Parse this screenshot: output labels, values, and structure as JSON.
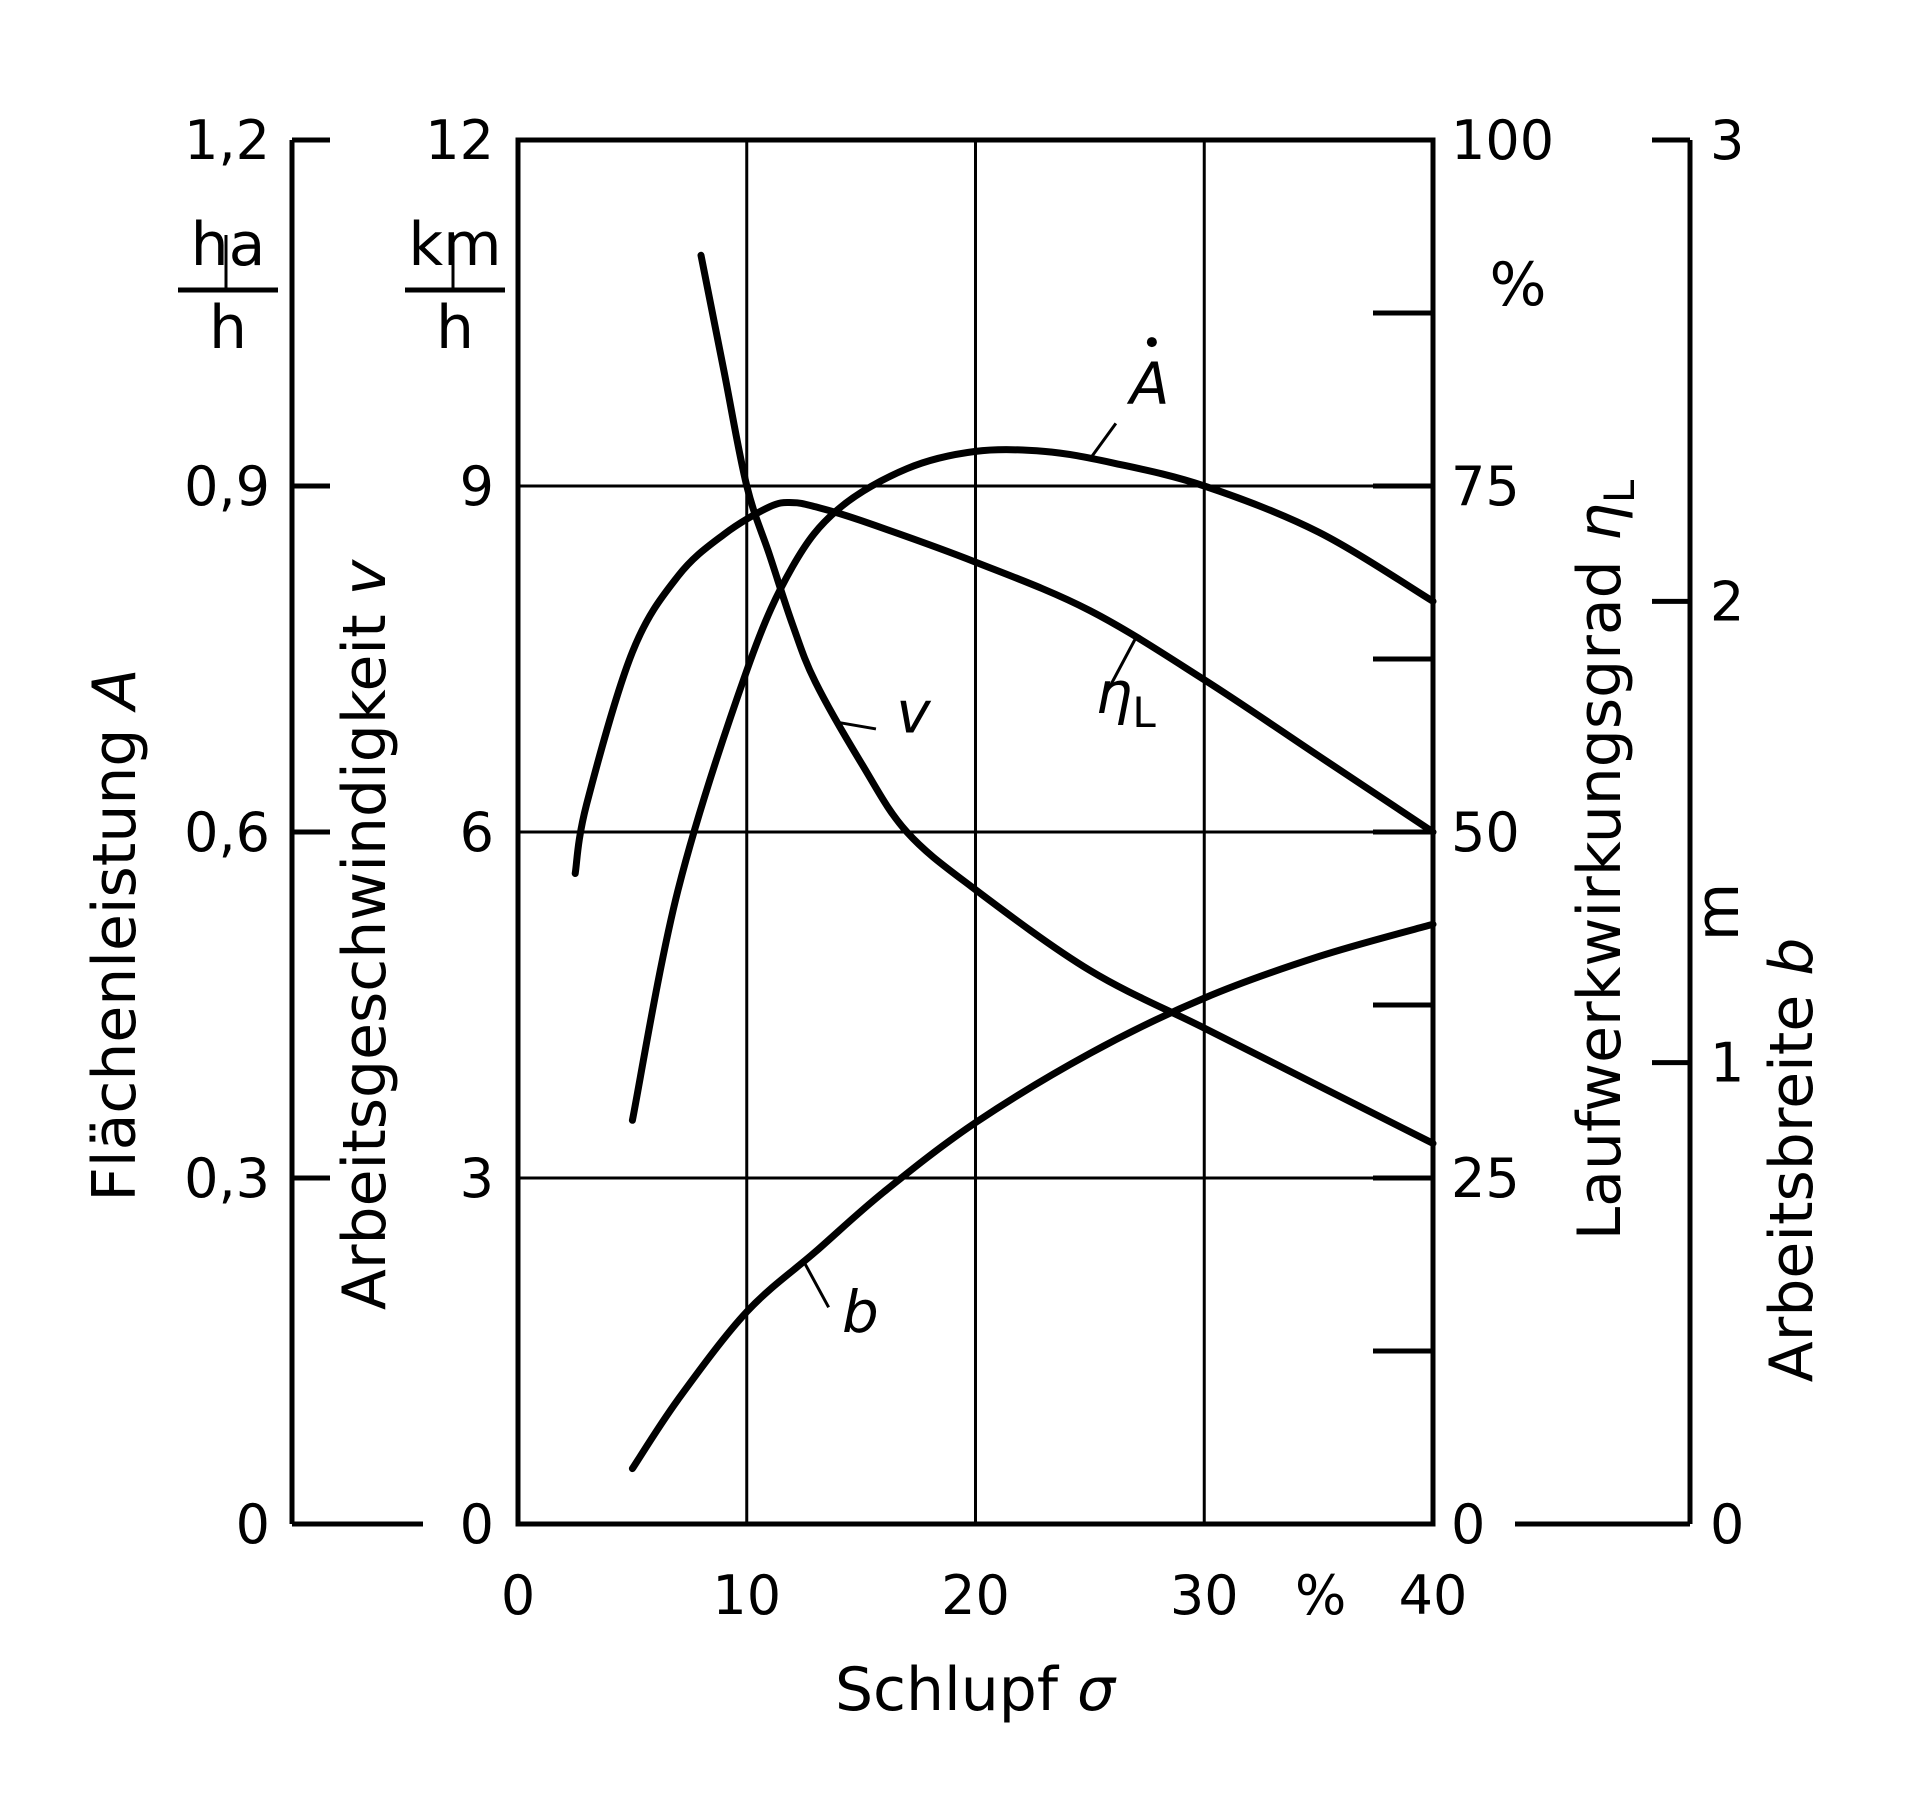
{
  "chart_data": {
    "type": "line",
    "xlabel": "Schlupf",
    "xlabel_symbol": "σ",
    "x_unit": "%",
    "xlim": [
      0,
      40
    ],
    "x_ticks": [
      "0",
      "10",
      "20",
      "30",
      "40"
    ],
    "grid": true,
    "axes": {
      "A": {
        "label": "Flächenleistung",
        "symbol": "A",
        "unit_num": "ha",
        "unit_den": "h",
        "range": [
          0,
          1.2
        ],
        "ticks": [
          "0",
          "0,3",
          "0,6",
          "0,9",
          "1,2"
        ]
      },
      "v": {
        "label": "Arbeitsgeschwindigkeit",
        "symbol": "v",
        "unit_num": "km",
        "unit_den": "h",
        "range": [
          0,
          12
        ],
        "ticks": [
          "0",
          "3",
          "6",
          "9",
          "12"
        ]
      },
      "eta": {
        "label": "Laufwerkwirkungsgrad",
        "symbol": "η",
        "symbol_sub": "L",
        "unit": "%",
        "range": [
          0,
          100
        ],
        "ticks": [
          "0",
          "25",
          "50",
          "75",
          "100"
        ]
      },
      "b": {
        "label": "Arbeitsbreite",
        "symbol": "b",
        "unit": "m",
        "range": [
          0,
          3
        ],
        "ticks": [
          "0",
          "1",
          "2",
          "3"
        ]
      }
    },
    "series": [
      {
        "name": "A",
        "axis": "A",
        "x": [
          5,
          7,
          10,
          12,
          14,
          17,
          20,
          23,
          26,
          30,
          35,
          40
        ],
        "y": [
          0.35,
          0.55,
          0.74,
          0.83,
          0.88,
          0.915,
          0.93,
          0.93,
          0.92,
          0.9,
          0.86,
          0.8
        ]
      },
      {
        "name": "v",
        "axis": "v",
        "x": [
          8,
          9,
          10,
          11,
          12,
          13,
          15,
          17,
          20,
          25,
          30,
          35,
          40
        ],
        "y": [
          11.0,
          10.0,
          9.0,
          8.4,
          7.8,
          7.3,
          6.6,
          6.0,
          5.5,
          4.8,
          4.3,
          3.8,
          3.3
        ]
      },
      {
        "name": "η",
        "name_sub": "L",
        "axis": "eta",
        "x": [
          2.5,
          3,
          5,
          7,
          9,
          11,
          12,
          13,
          15,
          20,
          25,
          30,
          35,
          40
        ],
        "y": [
          47,
          52,
          63,
          68.5,
          71.5,
          73.5,
          73.8,
          73.5,
          72.5,
          69.5,
          66,
          61,
          55.5,
          50
        ]
      },
      {
        "name": "b",
        "axis": "b",
        "x": [
          5,
          7,
          10,
          13,
          16,
          20,
          25,
          30,
          35,
          40
        ],
        "y": [
          0.12,
          0.27,
          0.46,
          0.59,
          0.72,
          0.87,
          1.02,
          1.14,
          1.23,
          1.3
        ]
      }
    ]
  }
}
